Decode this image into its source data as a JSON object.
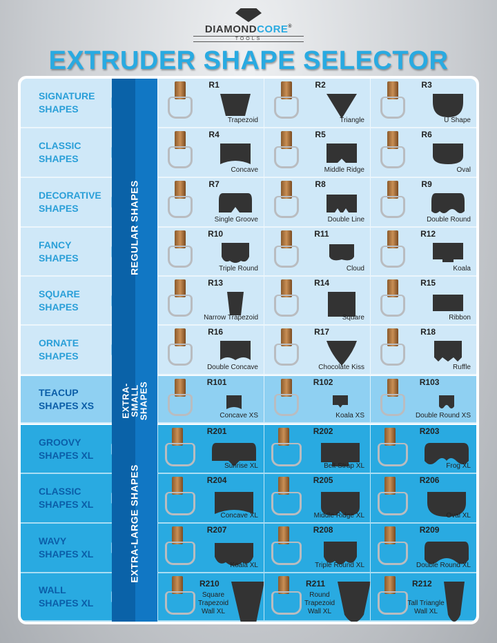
{
  "brand": {
    "name_a": "DIAMOND",
    "name_b": "CORE",
    "sub": "TOOLS",
    "reg": "®"
  },
  "title": "EXTRUDER SHAPE SELECTOR",
  "bands": {
    "regular": "REGULAR SHAPES",
    "xs": "EXTRA-SMALL SHAPES",
    "xl": "EXTRA-LARGE SHAPES"
  },
  "colors": {
    "accent": "#29aae1",
    "regular_bg": "#cfe8f8",
    "xs_bg": "#8fd0f2",
    "xl_bg": "#29aae1",
    "band_dark": "#0a62a8"
  },
  "rows": [
    {
      "label": "SIGNATURE SHAPES",
      "group": "reg",
      "items": [
        {
          "code": "R1",
          "name": "Trapezoid"
        },
        {
          "code": "R2",
          "name": "Triangle"
        },
        {
          "code": "R3",
          "name": "U Shape"
        }
      ]
    },
    {
      "label": "CLASSIC SHAPES",
      "group": "reg",
      "items": [
        {
          "code": "R4",
          "name": "Concave"
        },
        {
          "code": "R5",
          "name": "Middle Ridge"
        },
        {
          "code": "R6",
          "name": "Oval"
        }
      ]
    },
    {
      "label": "DECORATIVE SHAPES",
      "group": "reg",
      "items": [
        {
          "code": "R7",
          "name": "Single Groove"
        },
        {
          "code": "R8",
          "name": "Double Line"
        },
        {
          "code": "R9",
          "name": "Double Round"
        }
      ]
    },
    {
      "label": "FANCY SHAPES",
      "group": "reg",
      "items": [
        {
          "code": "R10",
          "name": "Triple Round"
        },
        {
          "code": "R11",
          "name": "Cloud"
        },
        {
          "code": "R12",
          "name": "Koala"
        }
      ]
    },
    {
      "label": "SQUARE SHAPES",
      "group": "reg",
      "items": [
        {
          "code": "R13",
          "name": "Narrow Trapezoid"
        },
        {
          "code": "R14",
          "name": "Square"
        },
        {
          "code": "R15",
          "name": "Ribbon"
        }
      ]
    },
    {
      "label": "ORNATE SHAPES",
      "group": "reg",
      "items": [
        {
          "code": "R16",
          "name": "Double Concave"
        },
        {
          "code": "R17",
          "name": "Chocolate Kiss"
        },
        {
          "code": "R18",
          "name": "Ruffle"
        }
      ]
    },
    {
      "label": "TEACUP SHAPES XS",
      "group": "xs",
      "items": [
        {
          "code": "R101",
          "name": "Concave XS"
        },
        {
          "code": "R102",
          "name": "Koala XS"
        },
        {
          "code": "R103",
          "name": "Double Round XS"
        }
      ]
    },
    {
      "label": "GROOVY SHAPES XL",
      "group": "xl",
      "items": [
        {
          "code": "R201",
          "name": "Sunrise XL"
        },
        {
          "code": "R202",
          "name": "Belt Strap XL"
        },
        {
          "code": "R203",
          "name": "Frog XL"
        }
      ]
    },
    {
      "label": "CLASSIC SHAPES XL",
      "group": "xl",
      "items": [
        {
          "code": "R204",
          "name": "Concave XL"
        },
        {
          "code": "R205",
          "name": "Middle Ridge XL"
        },
        {
          "code": "R206",
          "name": "Oval XL"
        }
      ]
    },
    {
      "label": "WAVY SHAPES XL",
      "group": "xl",
      "items": [
        {
          "code": "R207",
          "name": "Koala XL"
        },
        {
          "code": "R208",
          "name": "Triple Round XL"
        },
        {
          "code": "R209",
          "name": "Double Round XL"
        }
      ]
    },
    {
      "label": "WALL SHAPES XL",
      "group": "xl",
      "items": [
        {
          "code": "R210",
          "name": "Square Trapezoid Wall XL"
        },
        {
          "code": "R211",
          "name": "Round Trapezoid Wall XL"
        },
        {
          "code": "R212",
          "name": "Tall Triangle Wall XL"
        }
      ]
    }
  ]
}
